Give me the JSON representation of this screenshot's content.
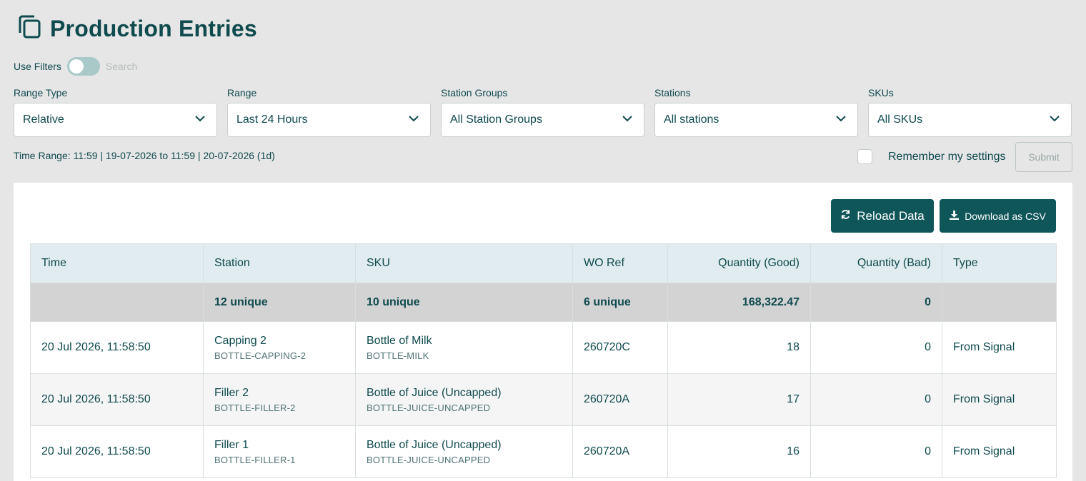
{
  "page": {
    "title": "Production Entries"
  },
  "filters": {
    "use_filters_label": "Use Filters",
    "search_label": "Search",
    "range_type": {
      "label": "Range Type",
      "value": "Relative"
    },
    "range": {
      "label": "Range",
      "value": "Last 24 Hours"
    },
    "station_groups": {
      "label": "Station Groups",
      "value": "All Station Groups"
    },
    "stations": {
      "label": "Stations",
      "value": "All stations"
    },
    "skus": {
      "label": "SKUs",
      "value": "All SKUs"
    },
    "time_range_text": "Time Range: 11:59 | 19-07-2026 to 11:59 | 20-07-2026 (1d)",
    "remember_label": "Remember my settings",
    "submit_label": "Submit"
  },
  "actions": {
    "reload_label": "Reload Data",
    "download_label": "Download as CSV"
  },
  "table": {
    "headers": {
      "time": "Time",
      "station": "Station",
      "sku": "SKU",
      "wo_ref": "WO Ref",
      "qty_good": "Quantity (Good)",
      "qty_bad": "Quantity (Bad)",
      "type": "Type"
    },
    "summary": {
      "station": "12 unique",
      "sku": "10 unique",
      "wo_ref": "6 unique",
      "qty_good": "168,322.47",
      "qty_bad": "0"
    },
    "rows": [
      {
        "time": "20 Jul 2026, 11:58:50",
        "station": "Capping 2",
        "station_code": "BOTTLE-CAPPING-2",
        "sku": "Bottle of Milk",
        "sku_code": "BOTTLE-MILK",
        "wo_ref": "260720C",
        "qty_good": "18",
        "qty_bad": "0",
        "type": "From Signal"
      },
      {
        "time": "20 Jul 2026, 11:58:50",
        "station": "Filler 2",
        "station_code": "BOTTLE-FILLER-2",
        "sku": "Bottle of Juice (Uncapped)",
        "sku_code": "BOTTLE-JUICE-UNCAPPED",
        "wo_ref": "260720A",
        "qty_good": "17",
        "qty_bad": "0",
        "type": "From Signal"
      },
      {
        "time": "20 Jul 2026, 11:58:50",
        "station": "Filler 1",
        "station_code": "BOTTLE-FILLER-1",
        "sku": "Bottle of Juice (Uncapped)",
        "sku_code": "BOTTLE-JUICE-UNCAPPED",
        "wo_ref": "260720A",
        "qty_good": "16",
        "qty_bad": "0",
        "type": "From Signal"
      }
    ]
  },
  "colors": {
    "primary": "#0f5659",
    "text": "#0f4a4e",
    "background": "#e6e6e6",
    "header_row": "#e0ecef",
    "summary_row": "#d3d3d3"
  },
  "icons": {
    "title": "copy-pages-icon",
    "dropdown": "chevron-down-icon",
    "reload": "refresh-icon",
    "download": "download-icon"
  }
}
